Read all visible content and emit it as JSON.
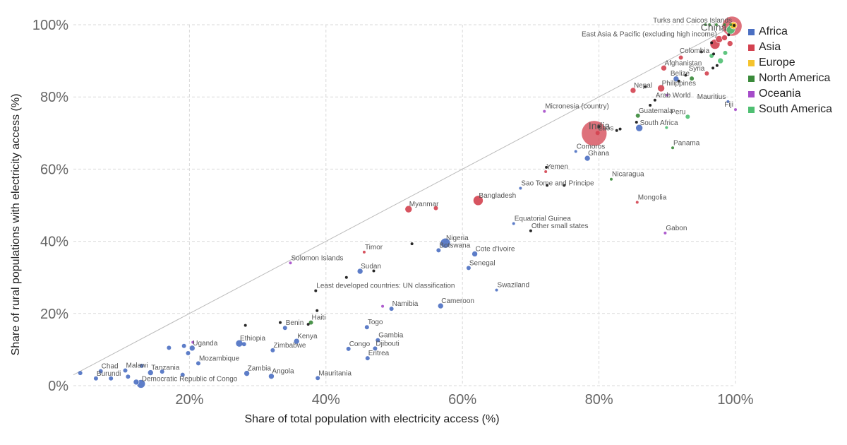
{
  "chart_data": {
    "type": "scatter",
    "xlabel": "Share of total population with electricity access (%)",
    "ylabel": "Share of rural populations with electricity access (%)",
    "xlim": [
      3,
      100
    ],
    "ylim": [
      0,
      100
    ],
    "x_ticks": [
      "20%",
      "40%",
      "60%",
      "80%",
      "100%"
    ],
    "y_ticks": [
      "0%",
      "20%",
      "40%",
      "60%",
      "80%",
      "100%"
    ],
    "grid": true,
    "legend_position": "right",
    "reference_line": "y = x",
    "legend": [
      {
        "name": "Africa",
        "color": "#4b6fc2"
      },
      {
        "name": "Asia",
        "color": "#d3414f"
      },
      {
        "name": "Europe",
        "color": "#f5c32c"
      },
      {
        "name": "North America",
        "color": "#3a8a3a"
      },
      {
        "name": "Oceania",
        "color": "#a54bc9"
      },
      {
        "name": "South America",
        "color": "#4fbf72"
      }
    ],
    "points": [
      {
        "x": 4,
        "y": 3.5,
        "r": 3,
        "region": "Africa",
        "label": ""
      },
      {
        "x": 6.3,
        "y": 2,
        "r": 3,
        "region": "Africa",
        "label": "Burundi"
      },
      {
        "x": 7,
        "y": 4,
        "r": 3,
        "region": "Africa",
        "label": "Chad"
      },
      {
        "x": 8.5,
        "y": 2,
        "r": 3,
        "region": "Africa",
        "label": ""
      },
      {
        "x": 10.6,
        "y": 4.2,
        "r": 3,
        "region": "Africa",
        "label": "Malawi"
      },
      {
        "x": 11,
        "y": 2.5,
        "r": 3,
        "region": "Africa",
        "label": ""
      },
      {
        "x": 12.2,
        "y": 1,
        "r": 4,
        "region": "Africa",
        "label": ""
      },
      {
        "x": 12.9,
        "y": 0.5,
        "r": 6,
        "region": "Africa",
        "label": "Democratic Republic of Congo"
      },
      {
        "x": 13,
        "y": 5.5,
        "r": 3,
        "region": "Africa",
        "label": ""
      },
      {
        "x": 14.3,
        "y": 3.6,
        "r": 4,
        "region": "Africa",
        "label": "Tanzania"
      },
      {
        "x": 16,
        "y": 3.9,
        "r": 3,
        "region": "Africa",
        "label": ""
      },
      {
        "x": 17,
        "y": 10.5,
        "r": 3,
        "region": "Africa",
        "label": ""
      },
      {
        "x": 19,
        "y": 3,
        "r": 3,
        "region": "Africa",
        "label": ""
      },
      {
        "x": 19.2,
        "y": 11,
        "r": 3,
        "region": "Africa",
        "label": ""
      },
      {
        "x": 19.8,
        "y": 9,
        "r": 3,
        "region": "Africa",
        "label": ""
      },
      {
        "x": 20.4,
        "y": 10.4,
        "r": 4,
        "region": "Africa",
        "label": "Uganda"
      },
      {
        "x": 20.5,
        "y": 12,
        "r": 2,
        "region": "Oceania",
        "label": ""
      },
      {
        "x": 21.3,
        "y": 6.2,
        "r": 3,
        "region": "Africa",
        "label": "Mozambique"
      },
      {
        "x": 27.3,
        "y": 11.7,
        "r": 5,
        "region": "Africa",
        "label": "Ethiopia"
      },
      {
        "x": 28,
        "y": 11.5,
        "r": 3,
        "region": "Africa",
        "label": ""
      },
      {
        "x": 28.4,
        "y": 3.4,
        "r": 4,
        "region": "Africa",
        "label": "Zambia"
      },
      {
        "x": 28.2,
        "y": 16.7,
        "r": 2,
        "region": "",
        "label": ""
      },
      {
        "x": 32,
        "y": 2.6,
        "r": 4,
        "region": "Africa",
        "label": "Angola"
      },
      {
        "x": 32.2,
        "y": 9.8,
        "r": 3,
        "region": "Africa",
        "label": "Zimbabwe"
      },
      {
        "x": 33.3,
        "y": 17.5,
        "r": 2,
        "region": "",
        "label": ""
      },
      {
        "x": 34,
        "y": 16,
        "r": 3,
        "region": "Africa",
        "label": "Benin"
      },
      {
        "x": 35.7,
        "y": 12.3,
        "r": 4,
        "region": "Africa",
        "label": "Kenya"
      },
      {
        "x": 37.4,
        "y": 17,
        "r": 2,
        "region": "",
        "label": ""
      },
      {
        "x": 37.8,
        "y": 17.5,
        "r": 3,
        "region": "North America",
        "label": "Haiti"
      },
      {
        "x": 38.5,
        "y": 26.3,
        "r": 2,
        "region": "",
        "label": "Least developed countries: UN classification"
      },
      {
        "x": 38.7,
        "y": 20.8,
        "r": 2,
        "region": "",
        "label": ""
      },
      {
        "x": 38.8,
        "y": 2.1,
        "r": 3,
        "region": "Africa",
        "label": "Mauritania"
      },
      {
        "x": 34.8,
        "y": 34,
        "r": 2,
        "region": "Oceania",
        "label": "Solomon Islands"
      },
      {
        "x": 43,
        "y": 30,
        "r": 2,
        "region": "",
        "label": ""
      },
      {
        "x": 43.3,
        "y": 10.2,
        "r": 3,
        "region": "Africa",
        "label": "Congo"
      },
      {
        "x": 45,
        "y": 31.7,
        "r": 4,
        "region": "Africa",
        "label": "Sudan"
      },
      {
        "x": 45.6,
        "y": 37,
        "r": 2,
        "region": "Asia",
        "label": "Timor"
      },
      {
        "x": 46,
        "y": 16.2,
        "r": 3,
        "region": "Africa",
        "label": "Togo"
      },
      {
        "x": 46.1,
        "y": 7.6,
        "r": 3,
        "region": "Africa",
        "label": "Eritrea"
      },
      {
        "x": 47,
        "y": 31.8,
        "r": 2,
        "region": "",
        "label": ""
      },
      {
        "x": 47.2,
        "y": 10.3,
        "r": 3,
        "region": "Africa",
        "label": "Djibouti"
      },
      {
        "x": 47.6,
        "y": 12.6,
        "r": 3,
        "region": "Africa",
        "label": "Gambia"
      },
      {
        "x": 48.3,
        "y": 22,
        "r": 2,
        "region": "Oceania",
        "label": ""
      },
      {
        "x": 49.6,
        "y": 21.3,
        "r": 3,
        "region": "Africa",
        "label": "Namibia"
      },
      {
        "x": 52.1,
        "y": 48.9,
        "r": 5,
        "region": "Asia",
        "label": "Myanmar"
      },
      {
        "x": 52.6,
        "y": 39.3,
        "r": 2,
        "region": "",
        "label": ""
      },
      {
        "x": 56.1,
        "y": 49.2,
        "r": 3,
        "region": "Asia",
        "label": ""
      },
      {
        "x": 56.5,
        "y": 37.5,
        "r": 3,
        "region": "Africa",
        "label": "Botswana"
      },
      {
        "x": 56.8,
        "y": 22.1,
        "r": 4,
        "region": "Africa",
        "label": "Cameroon"
      },
      {
        "x": 57.5,
        "y": 39.5,
        "r": 7,
        "region": "Africa",
        "label": "Nigeria"
      },
      {
        "x": 60.9,
        "y": 32.6,
        "r": 3,
        "region": "Africa",
        "label": "Senegal"
      },
      {
        "x": 61.8,
        "y": 36.5,
        "r": 4,
        "region": "Africa",
        "label": "Cote d'Ivoire"
      },
      {
        "x": 62.3,
        "y": 51.3,
        "r": 7,
        "region": "Asia",
        "label": "Bangladesh"
      },
      {
        "x": 65,
        "y": 26.5,
        "r": 2,
        "region": "Africa",
        "label": "Swaziland"
      },
      {
        "x": 67.5,
        "y": 44.9,
        "r": 2,
        "region": "Africa",
        "label": "Equatorial Guinea"
      },
      {
        "x": 68.5,
        "y": 54.7,
        "r": 2,
        "region": "Africa",
        "label": "Sao Tome and Principe"
      },
      {
        "x": 70,
        "y": 42.9,
        "r": 2,
        "region": "",
        "label": "Other small states"
      },
      {
        "x": 72,
        "y": 76,
        "r": 2,
        "region": "Oceania",
        "label": "Micronesia (country)"
      },
      {
        "x": 72.2,
        "y": 59.3,
        "r": 2,
        "region": "Asia",
        "label": "Yemen"
      },
      {
        "x": 72.3,
        "y": 60.5,
        "r": 2,
        "region": "",
        "label": ""
      },
      {
        "x": 72.4,
        "y": 55.5,
        "r": 2,
        "region": "",
        "label": ""
      },
      {
        "x": 74.9,
        "y": 55.5,
        "r": 2,
        "region": "",
        "label": ""
      },
      {
        "x": 76.6,
        "y": 64.9,
        "r": 2,
        "region": "Africa",
        "label": "Comoros"
      },
      {
        "x": 78.3,
        "y": 63,
        "r": 4,
        "region": "Africa",
        "label": "Ghana"
      },
      {
        "x": 79.3,
        "y": 69.9,
        "r": 18,
        "region": "Asia",
        "label": "India"
      },
      {
        "x": 79.8,
        "y": 70,
        "r": 3,
        "region": "Asia",
        "label": "Laos"
      },
      {
        "x": 80,
        "y": 71.8,
        "r": 2,
        "region": "",
        "label": ""
      },
      {
        "x": 81.8,
        "y": 57.2,
        "r": 2,
        "region": "North America",
        "label": "Nicaragua"
      },
      {
        "x": 82.6,
        "y": 70.7,
        "r": 2,
        "region": "",
        "label": ""
      },
      {
        "x": 83.1,
        "y": 71.1,
        "r": 2,
        "region": "",
        "label": ""
      },
      {
        "x": 85,
        "y": 81.8,
        "r": 4,
        "region": "Asia",
        "label": "Nepal"
      },
      {
        "x": 85.9,
        "y": 71.4,
        "r": 5,
        "region": "Africa",
        "label": "South Africa"
      },
      {
        "x": 85.5,
        "y": 73,
        "r": 2,
        "region": "",
        "label": ""
      },
      {
        "x": 85.6,
        "y": 50.8,
        "r": 2,
        "region": "Asia",
        "label": "Mongolia"
      },
      {
        "x": 85.7,
        "y": 74.8,
        "r": 3,
        "region": "North America",
        "label": "Guatemala"
      },
      {
        "x": 86.8,
        "y": 82.8,
        "r": 2,
        "region": "",
        "label": ""
      },
      {
        "x": 87.5,
        "y": 77.7,
        "r": 2,
        "region": "",
        "label": ""
      },
      {
        "x": 88.2,
        "y": 79.1,
        "r": 2,
        "region": "",
        "label": "Arab World"
      },
      {
        "x": 89.1,
        "y": 82.4,
        "r": 5,
        "region": "Asia",
        "label": "Philippines"
      },
      {
        "x": 89.5,
        "y": 88,
        "r": 4,
        "region": "Asia",
        "label": "Afghanistan"
      },
      {
        "x": 89.7,
        "y": 42.3,
        "r": 2,
        "region": "Oceania",
        "label": "Gabon"
      },
      {
        "x": 89.9,
        "y": 71.5,
        "r": 2,
        "region": "South America",
        "label": ""
      },
      {
        "x": 90,
        "y": 80.5,
        "r": 2,
        "region": "Oceania",
        "label": ""
      },
      {
        "x": 90.8,
        "y": 65.9,
        "r": 2,
        "region": "North America",
        "label": "Panama"
      },
      {
        "x": 91.3,
        "y": 85,
        "r": 4,
        "region": "Africa",
        "label": ""
      },
      {
        "x": 91.7,
        "y": 84.4,
        "r": 2,
        "region": "",
        "label": ""
      },
      {
        "x": 92,
        "y": 90.9,
        "r": 3,
        "region": "Asia",
        "label": ""
      },
      {
        "x": 92.7,
        "y": 86,
        "r": 2,
        "region": "",
        "label": ""
      },
      {
        "x": 93,
        "y": 74.5,
        "r": 3,
        "region": "South America",
        "label": "Peru"
      },
      {
        "x": 93.6,
        "y": 85.1,
        "r": 3,
        "region": "North America",
        "label": "Belize"
      },
      {
        "x": 95,
        "y": 92.5,
        "r": 2,
        "region": "",
        "label": ""
      },
      {
        "x": 95.8,
        "y": 86.5,
        "r": 3,
        "region": "Asia",
        "label": "Syria"
      },
      {
        "x": 96.5,
        "y": 91.4,
        "r": 3,
        "region": "South America",
        "label": "Colombia"
      },
      {
        "x": 96.5,
        "y": 95,
        "r": 2,
        "region": "",
        "label": ""
      },
      {
        "x": 96.7,
        "y": 88,
        "r": 2,
        "region": "",
        "label": ""
      },
      {
        "x": 96.8,
        "y": 91.9,
        "r": 2,
        "region": "",
        "label": ""
      },
      {
        "x": 97.3,
        "y": 88.7,
        "r": 2,
        "region": "",
        "label": ""
      },
      {
        "x": 97,
        "y": 94.6,
        "r": 7,
        "region": "Asia",
        "label": ""
      },
      {
        "x": 97.6,
        "y": 96,
        "r": 5,
        "region": "Asia",
        "label": "East Asia & Pacific (excluding high income)"
      },
      {
        "x": 97.8,
        "y": 90,
        "r": 4,
        "region": "South America",
        "label": ""
      },
      {
        "x": 98.4,
        "y": 96.4,
        "r": 4,
        "region": "Asia",
        "label": ""
      },
      {
        "x": 98.5,
        "y": 92.2,
        "r": 3,
        "region": "South America",
        "label": ""
      },
      {
        "x": 98.9,
        "y": 78.7,
        "r": 2,
        "region": "Africa",
        "label": "Mauritius"
      },
      {
        "x": 99.2,
        "y": 94.8,
        "r": 4,
        "region": "Asia",
        "label": ""
      },
      {
        "x": 99,
        "y": 97.2,
        "r": 2,
        "region": "",
        "label": "China"
      },
      {
        "x": 99.3,
        "y": 98.6,
        "r": 6,
        "region": "South America",
        "label": ""
      },
      {
        "x": 99.5,
        "y": 99.6,
        "r": 14,
        "region": "Asia",
        "label": ""
      },
      {
        "x": 99.7,
        "y": 99.8,
        "r": 5,
        "region": "Europe",
        "label": ""
      },
      {
        "x": 99.8,
        "y": 99.8,
        "r": 2,
        "region": "",
        "label": "Turks and Caicos Islands"
      },
      {
        "x": 100,
        "y": 76.5,
        "r": 2,
        "region": "Oceania",
        "label": "Fiji"
      },
      {
        "x": 95.6,
        "y": 100,
        "r": 2,
        "region": "North America",
        "label": ""
      },
      {
        "x": 96.2,
        "y": 100,
        "r": 2,
        "region": "North America",
        "label": ""
      },
      {
        "x": 97.2,
        "y": 100,
        "r": 2,
        "region": "North America",
        "label": ""
      },
      {
        "x": 98.4,
        "y": 100,
        "r": 2,
        "region": "North America",
        "label": ""
      },
      {
        "x": 99.3,
        "y": 100,
        "r": 2,
        "region": "North America",
        "label": ""
      }
    ]
  }
}
